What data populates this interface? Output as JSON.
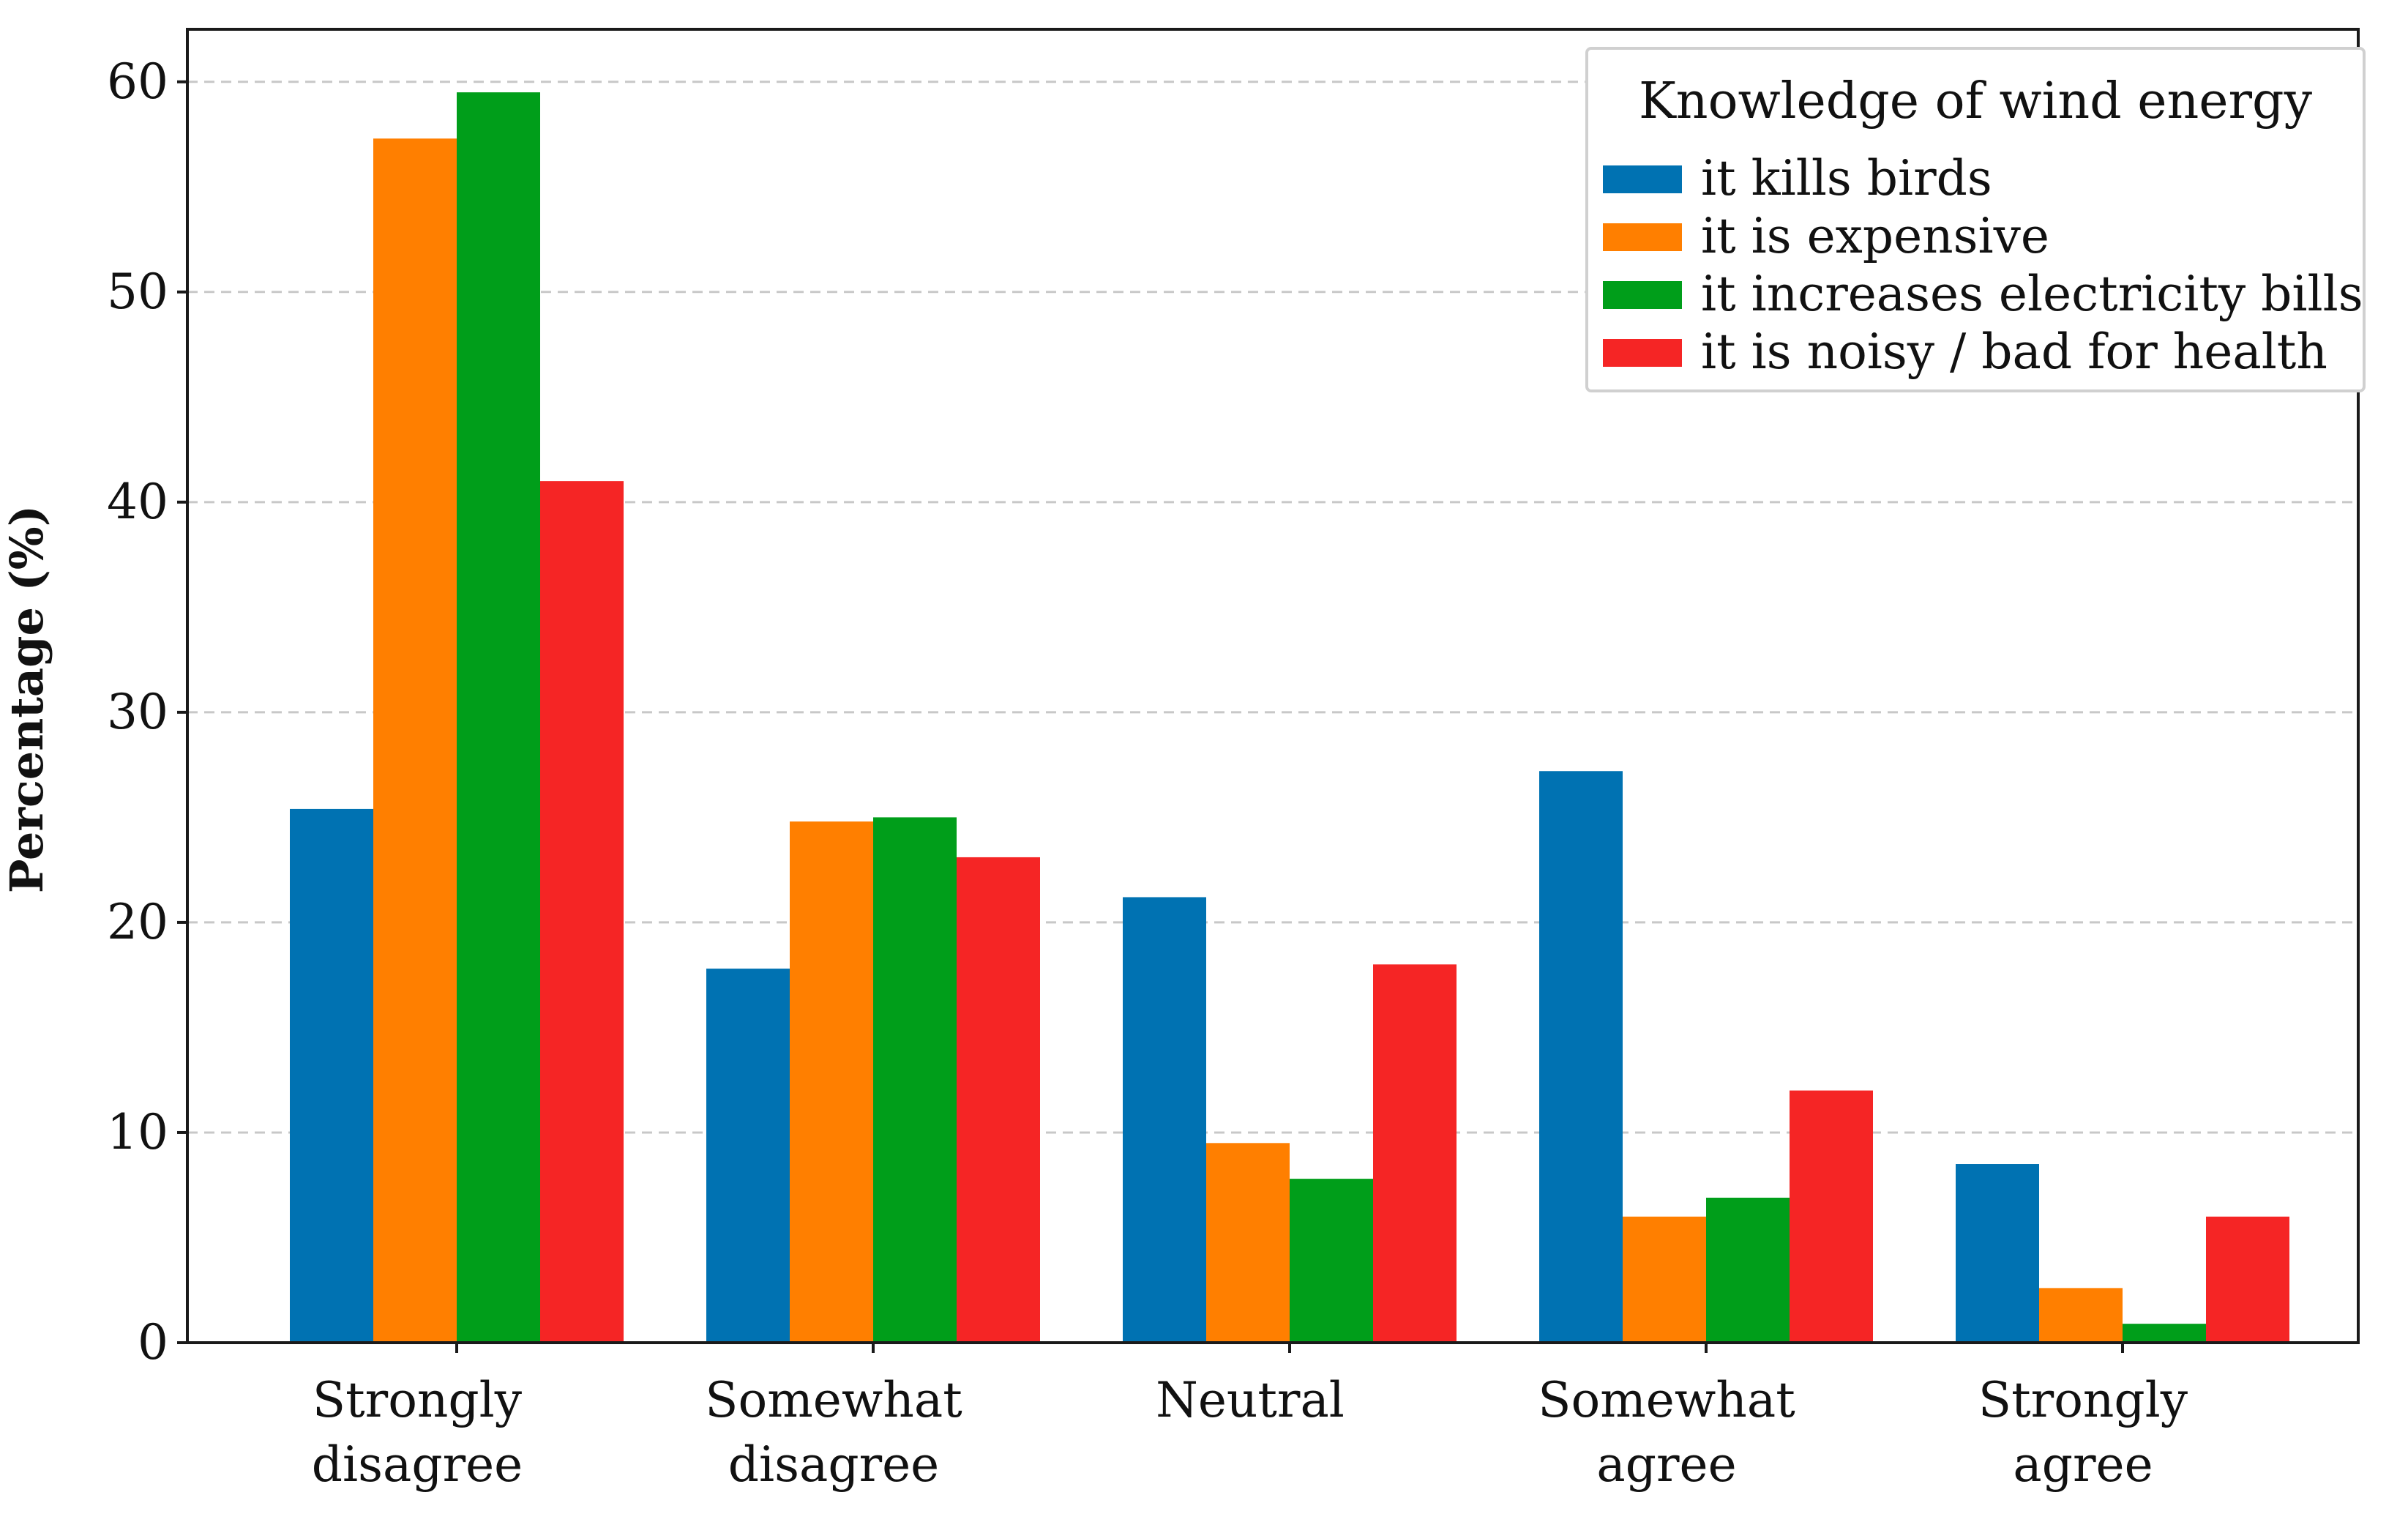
{
  "chart_data": {
    "type": "bar",
    "title": "",
    "xlabel": "",
    "ylabel": "Percentage (%)",
    "ylim": [
      0,
      62.5
    ],
    "yticks": [
      "0",
      "10",
      "20",
      "30",
      "40",
      "50",
      "60"
    ],
    "grid": true,
    "legend_position": "top-right",
    "legend_title": "Knowledge of wind energy",
    "categories": [
      [
        "Strongly",
        "disagree"
      ],
      [
        "Somewhat",
        "disagree"
      ],
      [
        "Neutral"
      ],
      [
        "Somewhat",
        "agree"
      ],
      [
        "Strongly",
        "agree"
      ]
    ],
    "series": [
      {
        "name": "it kills birds",
        "color": "#0072b2",
        "values": [
          25.4,
          17.8,
          21.2,
          27.2,
          8.5
        ]
      },
      {
        "name": "it is expensive",
        "color": "#ff7f00",
        "values": [
          57.3,
          24.8,
          9.5,
          6.0,
          2.6
        ]
      },
      {
        "name": "it increases electricity bills",
        "color": "#009e1a",
        "values": [
          59.5,
          25.0,
          7.8,
          6.9,
          0.9
        ]
      },
      {
        "name": "it is noisy / bad for health",
        "color": "#f52525",
        "values": [
          41.0,
          23.1,
          18.0,
          12.0,
          6.0
        ]
      }
    ]
  }
}
